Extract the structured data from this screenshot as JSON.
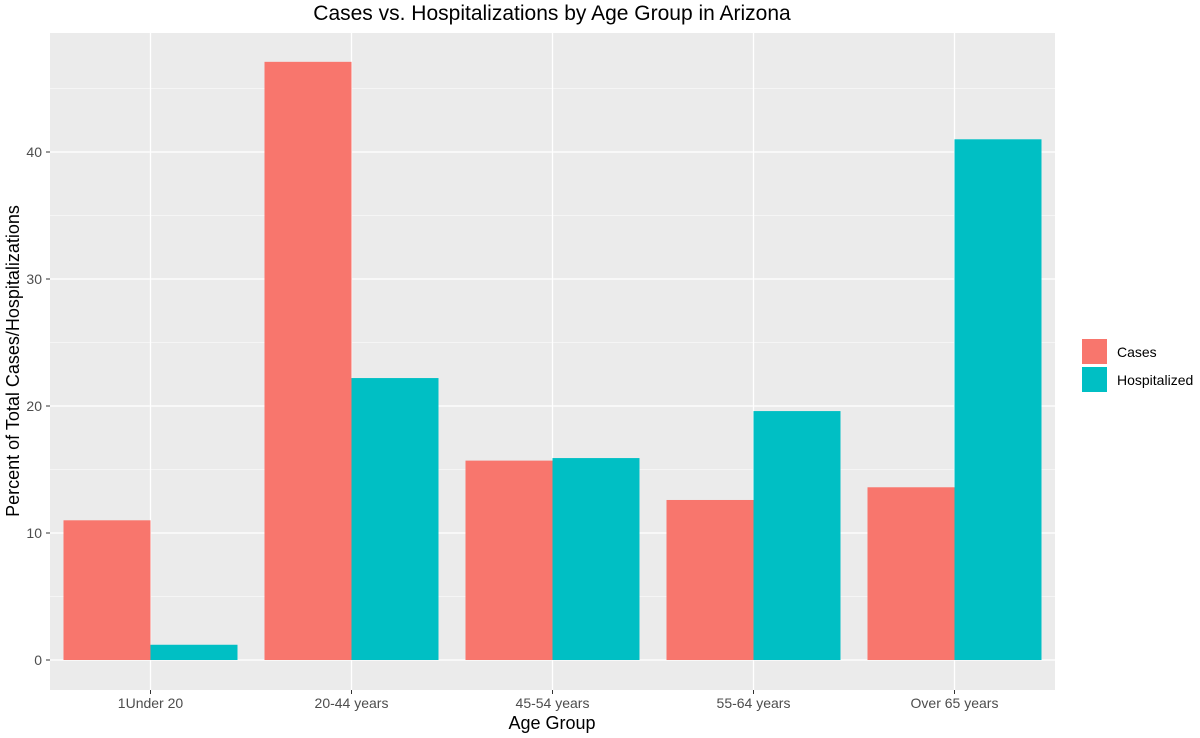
{
  "chart_data": {
    "type": "bar",
    "title": "Cases vs. Hospitalizations by Age Group in Arizona",
    "xlabel": "Age Group",
    "ylabel": "Percent of Total Cases/Hospitalizations",
    "categories": [
      "1Under 20",
      "20-44 years",
      "45-54 years",
      "55-64 years",
      "Over 65 years"
    ],
    "series": [
      {
        "name": "Cases",
        "color": "#F8766D",
        "values": [
          11.0,
          47.1,
          15.7,
          12.6,
          13.6
        ]
      },
      {
        "name": "Hospitalized",
        "color": "#00BFC4",
        "values": [
          1.2,
          22.2,
          15.9,
          19.6,
          41.0
        ]
      }
    ],
    "ylim": [
      0,
      49.4
    ],
    "yticks": [
      0,
      10,
      20,
      30,
      40
    ],
    "grid": true,
    "legend_position": "right",
    "panel_background": "#EBEBEB"
  }
}
